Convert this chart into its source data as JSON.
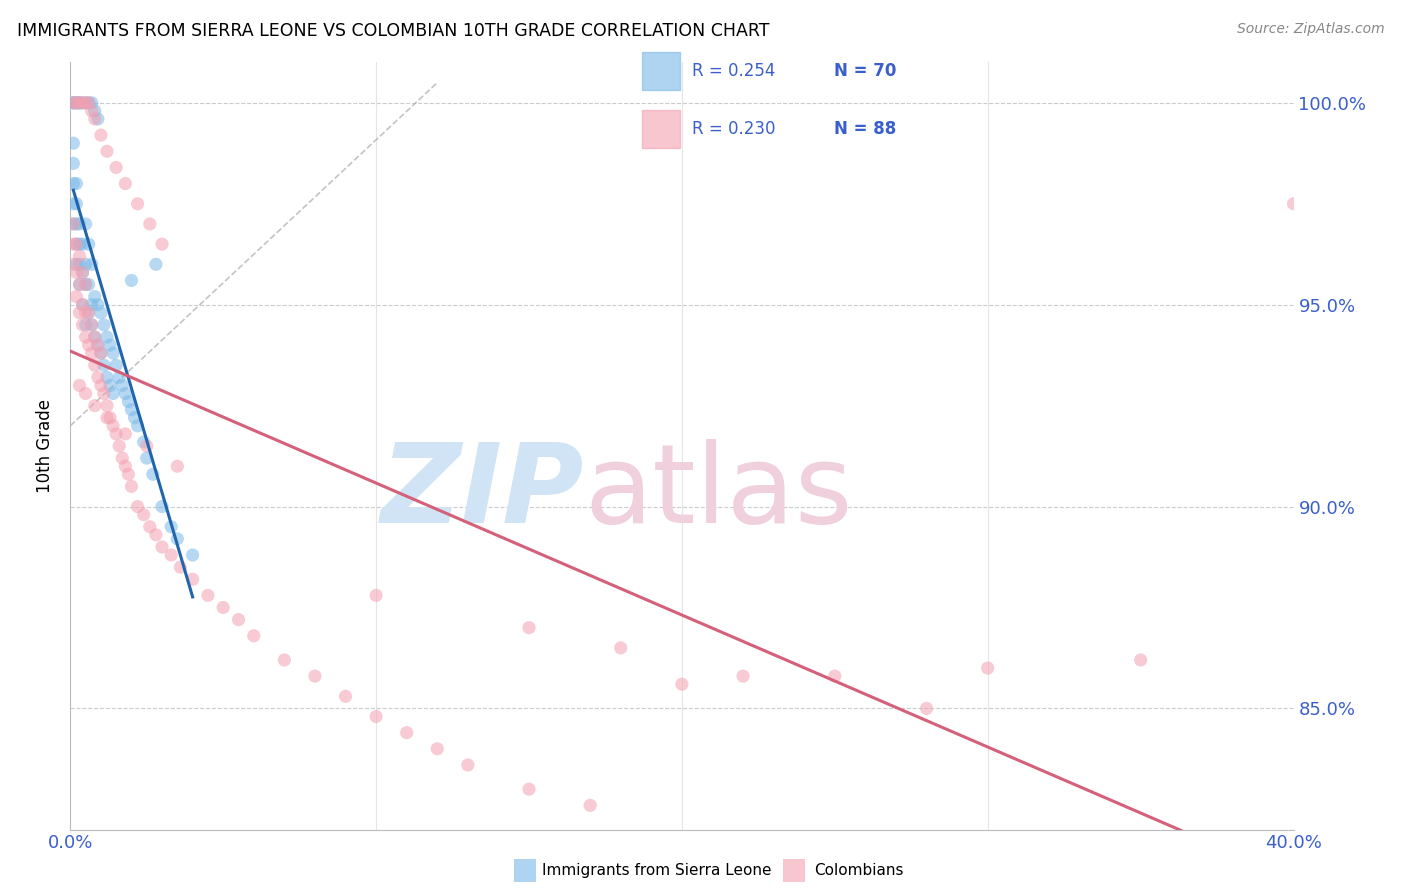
{
  "title": "IMMIGRANTS FROM SIERRA LEONE VS COLOMBIAN 10TH GRADE CORRELATION CHART",
  "source": "Source: ZipAtlas.com",
  "ylabel": "10th Grade",
  "legend_blue_r": "R = 0.254",
  "legend_blue_n": "N = 70",
  "legend_pink_r": "R = 0.230",
  "legend_pink_n": "N = 88",
  "blue_color": "#7ab8e8",
  "pink_color": "#f4a0b0",
  "blue_line_color": "#2166ac",
  "pink_line_color": "#d4607a",
  "axis_label_color": "#3a5fcd",
  "background_color": "#ffffff",
  "grid_color": "#cccccc",
  "xlim": [
    0.0,
    0.4
  ],
  "ylim": [
    0.82,
    1.01
  ],
  "blue_scatter_x": [
    0.001,
    0.001,
    0.001,
    0.001,
    0.001,
    0.002,
    0.002,
    0.002,
    0.002,
    0.002,
    0.003,
    0.003,
    0.003,
    0.003,
    0.004,
    0.004,
    0.004,
    0.005,
    0.005,
    0.005,
    0.005,
    0.006,
    0.006,
    0.006,
    0.007,
    0.007,
    0.007,
    0.008,
    0.008,
    0.009,
    0.009,
    0.01,
    0.01,
    0.011,
    0.011,
    0.012,
    0.012,
    0.013,
    0.013,
    0.014,
    0.014,
    0.015,
    0.016,
    0.017,
    0.018,
    0.019,
    0.02,
    0.021,
    0.022,
    0.024,
    0.025,
    0.027,
    0.03,
    0.033,
    0.035,
    0.04,
    0.001,
    0.001,
    0.002,
    0.002,
    0.003,
    0.003,
    0.004,
    0.005,
    0.006,
    0.007,
    0.008,
    0.009,
    0.02,
    0.028
  ],
  "blue_scatter_y": [
    0.97,
    0.975,
    0.98,
    0.985,
    0.99,
    0.96,
    0.965,
    0.97,
    0.975,
    0.98,
    0.955,
    0.96,
    0.965,
    0.97,
    0.95,
    0.958,
    0.965,
    0.945,
    0.955,
    0.96,
    0.97,
    0.948,
    0.955,
    0.965,
    0.945,
    0.95,
    0.96,
    0.942,
    0.952,
    0.94,
    0.95,
    0.938,
    0.948,
    0.935,
    0.945,
    0.932,
    0.942,
    0.93,
    0.94,
    0.928,
    0.938,
    0.935,
    0.932,
    0.93,
    0.928,
    0.926,
    0.924,
    0.922,
    0.92,
    0.916,
    0.912,
    0.908,
    0.9,
    0.895,
    0.892,
    0.888,
    1.0,
    1.0,
    1.0,
    1.0,
    1.0,
    1.0,
    1.0,
    1.0,
    1.0,
    1.0,
    0.998,
    0.996,
    0.956,
    0.96
  ],
  "pink_scatter_x": [
    0.001,
    0.001,
    0.001,
    0.002,
    0.002,
    0.002,
    0.003,
    0.003,
    0.003,
    0.004,
    0.004,
    0.004,
    0.005,
    0.005,
    0.005,
    0.006,
    0.006,
    0.007,
    0.007,
    0.008,
    0.008,
    0.009,
    0.009,
    0.01,
    0.01,
    0.011,
    0.012,
    0.013,
    0.014,
    0.015,
    0.016,
    0.017,
    0.018,
    0.019,
    0.02,
    0.022,
    0.024,
    0.026,
    0.028,
    0.03,
    0.033,
    0.036,
    0.04,
    0.045,
    0.05,
    0.055,
    0.06,
    0.07,
    0.08,
    0.09,
    0.1,
    0.11,
    0.12,
    0.13,
    0.15,
    0.17,
    0.2,
    0.25,
    0.3,
    0.35,
    0.001,
    0.002,
    0.003,
    0.004,
    0.005,
    0.006,
    0.007,
    0.008,
    0.01,
    0.012,
    0.015,
    0.018,
    0.022,
    0.026,
    0.03,
    0.1,
    0.15,
    0.18,
    0.22,
    0.28,
    0.003,
    0.005,
    0.008,
    0.012,
    0.018,
    0.025,
    0.035,
    0.4
  ],
  "pink_scatter_y": [
    0.96,
    0.965,
    0.97,
    0.952,
    0.958,
    0.965,
    0.948,
    0.955,
    0.962,
    0.945,
    0.95,
    0.958,
    0.942,
    0.948,
    0.955,
    0.94,
    0.948,
    0.938,
    0.945,
    0.935,
    0.942,
    0.932,
    0.94,
    0.93,
    0.938,
    0.928,
    0.925,
    0.922,
    0.92,
    0.918,
    0.915,
    0.912,
    0.91,
    0.908,
    0.905,
    0.9,
    0.898,
    0.895,
    0.893,
    0.89,
    0.888,
    0.885,
    0.882,
    0.878,
    0.875,
    0.872,
    0.868,
    0.862,
    0.858,
    0.853,
    0.848,
    0.844,
    0.84,
    0.836,
    0.83,
    0.826,
    0.856,
    0.858,
    0.86,
    0.862,
    1.0,
    1.0,
    1.0,
    1.0,
    1.0,
    1.0,
    0.998,
    0.996,
    0.992,
    0.988,
    0.984,
    0.98,
    0.975,
    0.97,
    0.965,
    0.878,
    0.87,
    0.865,
    0.858,
    0.85,
    0.93,
    0.928,
    0.925,
    0.922,
    0.918,
    0.915,
    0.91,
    0.975
  ]
}
